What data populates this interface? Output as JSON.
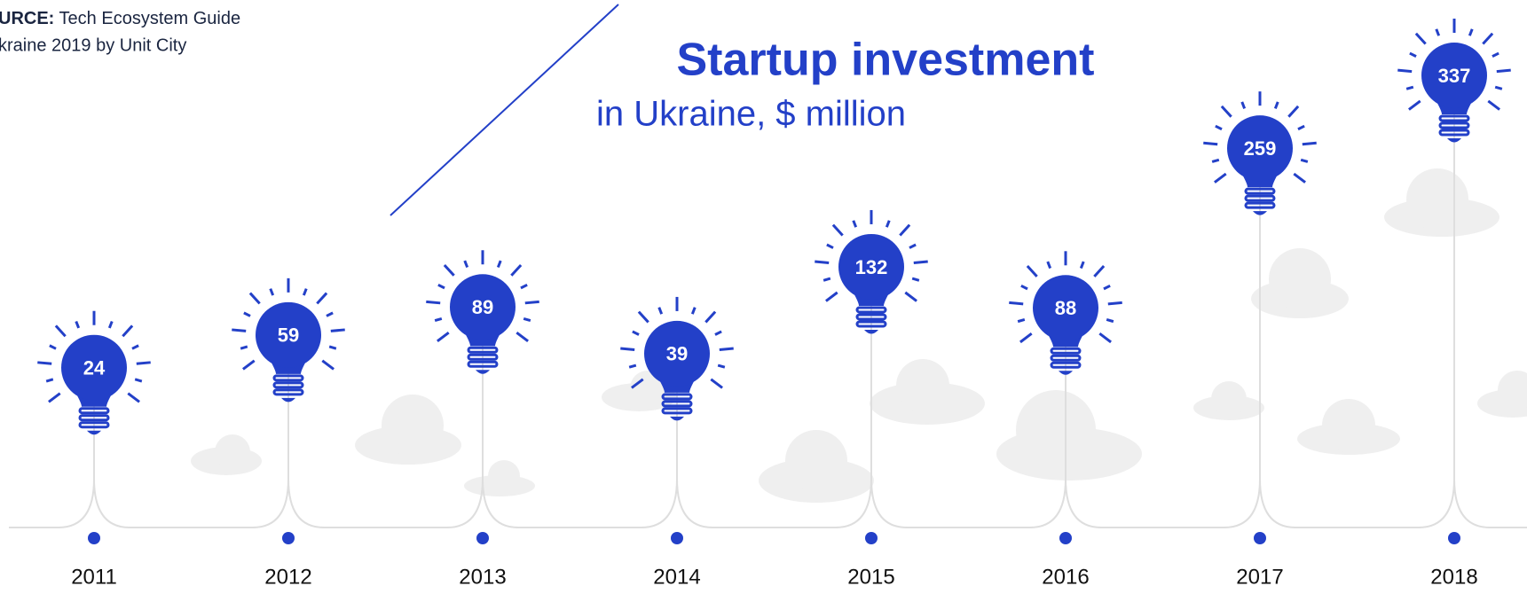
{
  "source_note": {
    "label": "URCE:",
    "lines": [
      "Tech Ecosystem Guide",
      "kraine 2019 by Unit City"
    ]
  },
  "chart_data": {
    "type": "lightbulb",
    "title": "Startup investment",
    "subtitle": "in Ukraine, $ million",
    "categories": [
      "2011",
      "2012",
      "2013",
      "2014",
      "2015",
      "2016",
      "2017",
      "2018"
    ],
    "values": [
      24,
      59,
      89,
      39,
      132,
      88,
      259,
      337
    ],
    "color": "#2340c8"
  }
}
